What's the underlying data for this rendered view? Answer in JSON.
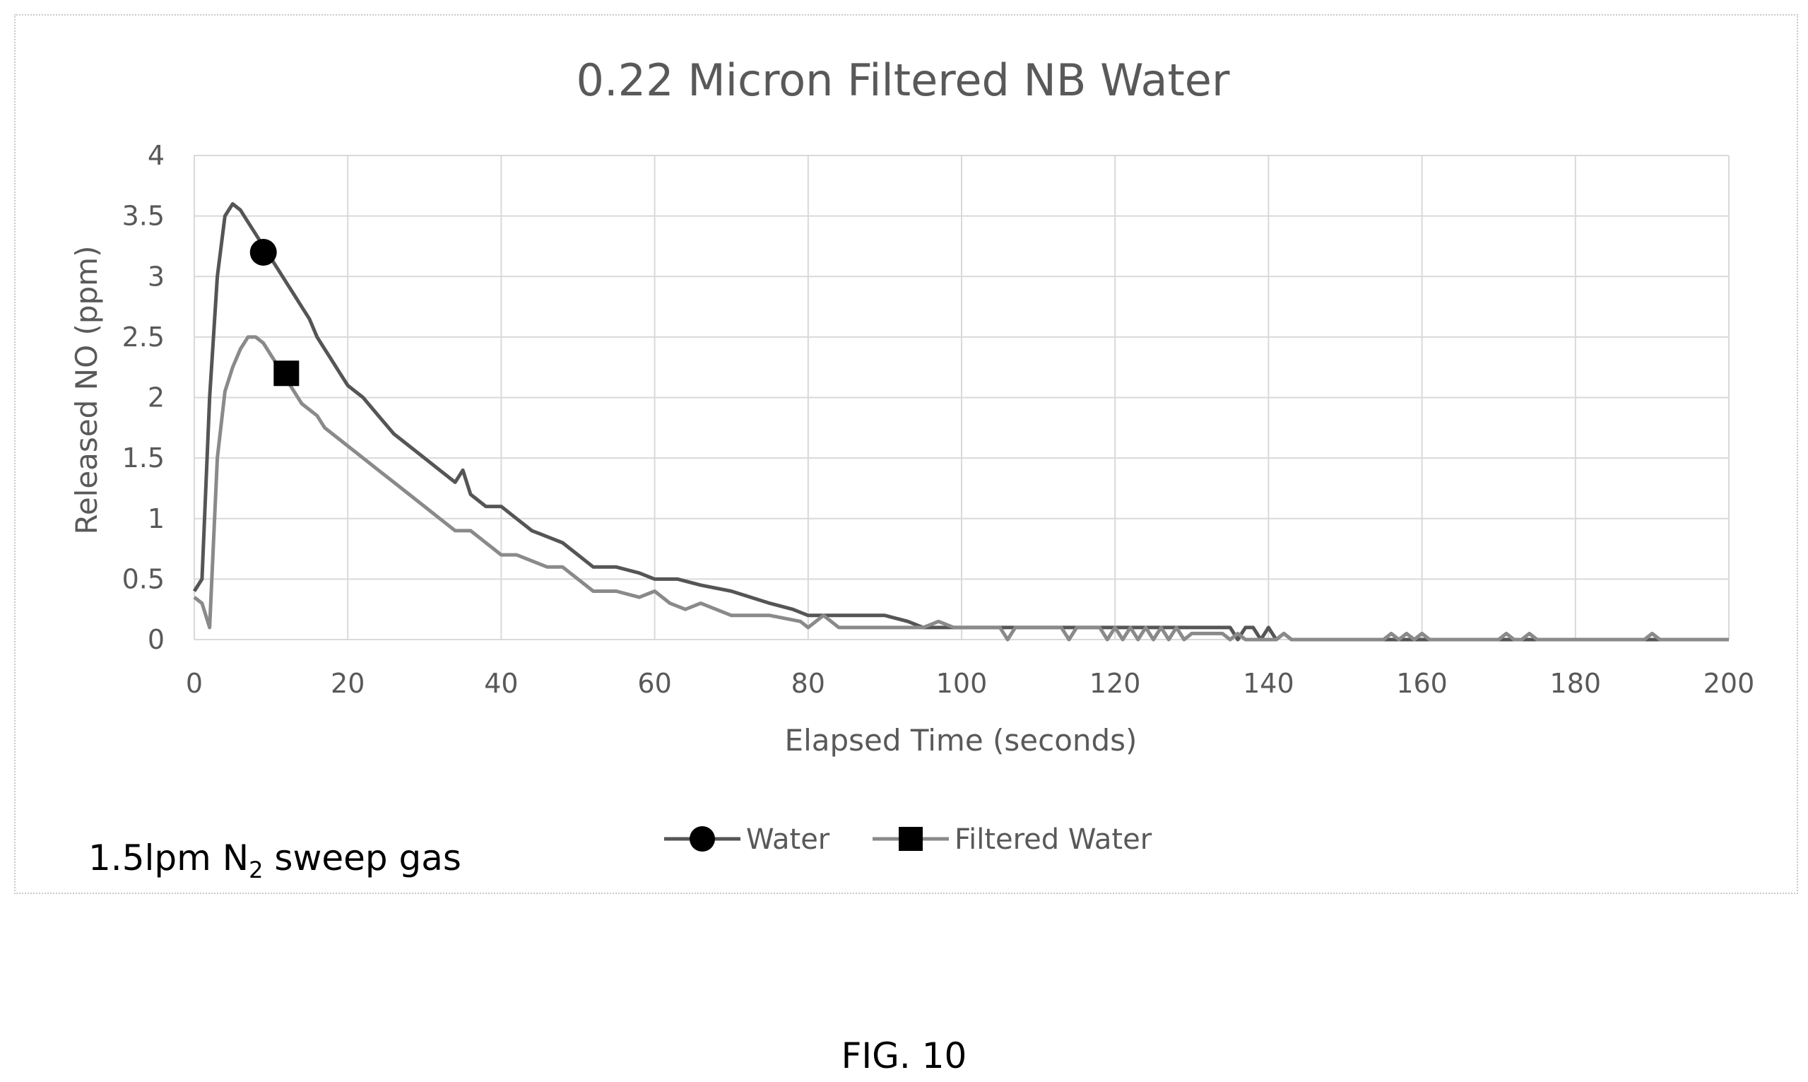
{
  "caption": "FIG. 10",
  "note": {
    "prefix": "1.5lpm N",
    "subscript": "2",
    "suffix": " sweep gas"
  },
  "chart_data": {
    "type": "line",
    "title": "0.22 Micron Filtered NB Water",
    "xlabel": "Elapsed Time (seconds)",
    "ylabel": "Released NO (ppm)",
    "xlim": [
      0,
      200
    ],
    "ylim": [
      0,
      4
    ],
    "xticks": [
      0,
      20,
      40,
      60,
      80,
      100,
      120,
      140,
      160,
      180,
      200
    ],
    "yticks": [
      0,
      0.5,
      1,
      1.5,
      2,
      2.5,
      3,
      3.5,
      4
    ],
    "grid": true,
    "legend_position": "bottom-center",
    "series": [
      {
        "name": "Water",
        "color": "#555555",
        "marker": "circle",
        "marker_point": [
          9,
          3.2
        ],
        "x": [
          0,
          1,
          2,
          3,
          4,
          5,
          6,
          7,
          8,
          9,
          10,
          11,
          12,
          13,
          14,
          15,
          16,
          17,
          18,
          19,
          20,
          22,
          24,
          26,
          28,
          30,
          32,
          34,
          35,
          36,
          38,
          40,
          42,
          44,
          46,
          48,
          50,
          52,
          55,
          58,
          60,
          63,
          66,
          70,
          75,
          78,
          80,
          85,
          90,
          93,
          95,
          100,
          110,
          120,
          130,
          135,
          136,
          137,
          138,
          139,
          140,
          141,
          142,
          143,
          150,
          160,
          170,
          180,
          190,
          200
        ],
        "y": [
          0.4,
          0.5,
          2.0,
          3.0,
          3.5,
          3.6,
          3.55,
          3.45,
          3.35,
          3.25,
          3.15,
          3.05,
          2.95,
          2.85,
          2.75,
          2.65,
          2.5,
          2.4,
          2.3,
          2.2,
          2.1,
          2.0,
          1.85,
          1.7,
          1.6,
          1.5,
          1.4,
          1.3,
          1.4,
          1.2,
          1.1,
          1.1,
          1.0,
          0.9,
          0.85,
          0.8,
          0.7,
          0.6,
          0.6,
          0.55,
          0.5,
          0.5,
          0.45,
          0.4,
          0.3,
          0.25,
          0.2,
          0.2,
          0.2,
          0.15,
          0.1,
          0.1,
          0.1,
          0.1,
          0.1,
          0.1,
          0.0,
          0.1,
          0.1,
          0.0,
          0.1,
          0.0,
          0.05,
          0.0,
          0.0,
          0.0,
          0.0,
          0.0,
          0.0,
          0.0
        ]
      },
      {
        "name": "Filtered Water",
        "color": "#8a8a8a",
        "marker": "square",
        "marker_point": [
          12,
          2.2
        ],
        "x": [
          0,
          1,
          2,
          3,
          4,
          5,
          6,
          7,
          8,
          9,
          10,
          11,
          12,
          13,
          14,
          15,
          16,
          17,
          18,
          20,
          22,
          24,
          26,
          28,
          30,
          32,
          34,
          36,
          38,
          40,
          42,
          44,
          46,
          48,
          50,
          52,
          55,
          58,
          60,
          62,
          64,
          66,
          68,
          70,
          75,
          79,
          80,
          81,
          82,
          83,
          84,
          86,
          90,
          95,
          97,
          99,
          100,
          105,
          106,
          107,
          113,
          114,
          115,
          118,
          119,
          120,
          121,
          122,
          123,
          124,
          125,
          126,
          127,
          128,
          129,
          130,
          134,
          135,
          136,
          137,
          141,
          142,
          143,
          150,
          155,
          156,
          157,
          158,
          159,
          160,
          161,
          162,
          170,
          171,
          172,
          173,
          174,
          175,
          176,
          189,
          190,
          191,
          200
        ],
        "y": [
          0.35,
          0.3,
          0.1,
          1.5,
          2.05,
          2.25,
          2.4,
          2.5,
          2.5,
          2.45,
          2.35,
          2.25,
          2.15,
          2.05,
          1.95,
          1.9,
          1.85,
          1.75,
          1.7,
          1.6,
          1.5,
          1.4,
          1.3,
          1.2,
          1.1,
          1.0,
          0.9,
          0.9,
          0.8,
          0.7,
          0.7,
          0.65,
          0.6,
          0.6,
          0.5,
          0.4,
          0.4,
          0.35,
          0.4,
          0.3,
          0.25,
          0.3,
          0.25,
          0.2,
          0.2,
          0.15,
          0.1,
          0.15,
          0.2,
          0.15,
          0.1,
          0.1,
          0.1,
          0.1,
          0.15,
          0.1,
          0.1,
          0.1,
          0.0,
          0.1,
          0.1,
          0.0,
          0.1,
          0.1,
          0.0,
          0.1,
          0.0,
          0.1,
          0.0,
          0.1,
          0.0,
          0.1,
          0.0,
          0.1,
          0.0,
          0.05,
          0.05,
          0.0,
          0.05,
          0.0,
          0.0,
          0.05,
          0.0,
          0.0,
          0.0,
          0.05,
          0.0,
          0.05,
          0.0,
          0.05,
          0.0,
          0.0,
          0.0,
          0.05,
          0.0,
          0.0,
          0.05,
          0.0,
          0.0,
          0.0,
          0.05,
          0.0,
          0.0
        ]
      }
    ]
  }
}
